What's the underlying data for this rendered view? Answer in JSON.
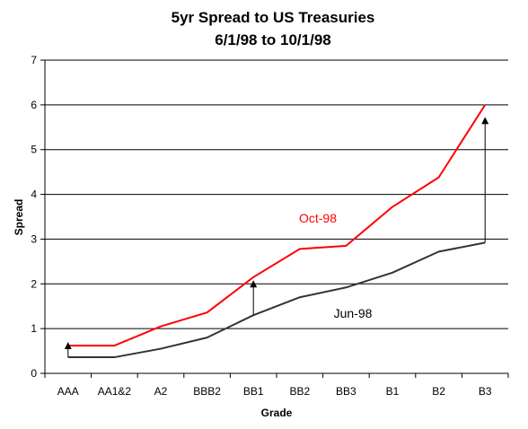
{
  "chart_data": {
    "type": "line",
    "title": "5yr Spread to US Treasuries",
    "subtitle": "6/1/98 to 10/1/98",
    "xlabel": "Grade",
    "ylabel": "Spread",
    "categories": [
      "AAA",
      "AA1&2",
      "A2",
      "BBB2",
      "BB1",
      "BB2",
      "BB3",
      "B1",
      "B2",
      "B3"
    ],
    "ylim": [
      0,
      7
    ],
    "yticks": [
      "0",
      "1",
      "2",
      "3",
      "4",
      "5",
      "6",
      "7"
    ],
    "grid": true,
    "series": [
      {
        "name": "Oct-98",
        "color": "#ff0000",
        "values": [
          0.62,
          0.62,
          1.05,
          1.36,
          2.15,
          2.78,
          2.85,
          3.72,
          4.38,
          6.0
        ]
      },
      {
        "name": "Jun-98",
        "color": "#333333",
        "values": [
          0.36,
          0.36,
          0.55,
          0.8,
          1.3,
          1.7,
          1.92,
          2.25,
          2.72,
          2.92
        ]
      }
    ],
    "annotations": [
      {
        "type": "arrow",
        "category": "AAA",
        "from": 0.36,
        "to": 0.62
      },
      {
        "type": "arrow",
        "category": "BB1",
        "from": 1.3,
        "to": 2.0
      },
      {
        "type": "arrow",
        "category": "B3",
        "from": 2.92,
        "to": 5.65
      }
    ]
  }
}
